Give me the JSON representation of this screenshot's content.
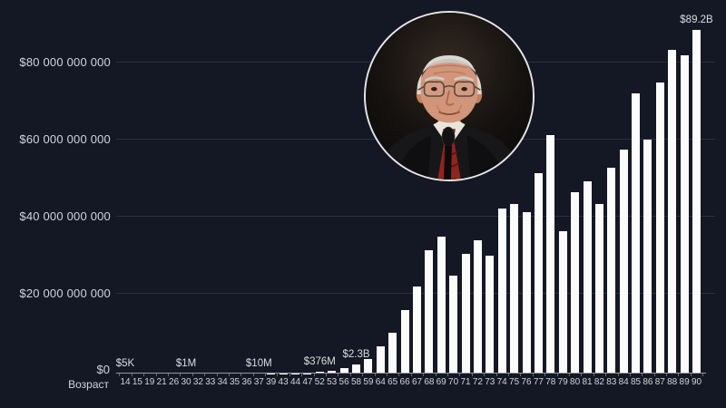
{
  "colors": {
    "background": "#141824",
    "bar": "#fbfbfb",
    "text": "#d1d4dc",
    "gridline": "#3a4150",
    "axis_line": "#9598a1",
    "photo_border": "#e6e6e6",
    "tie_red": "#8f2420"
  },
  "y_axis": {
    "zero_label": "$0",
    "ticks": [
      {
        "label": "$80 000 000 000",
        "value": 80000000000
      },
      {
        "label": "$60 000 000 000",
        "value": 60000000000
      },
      {
        "label": "$40 000 000 000",
        "value": 40000000000
      },
      {
        "label": "$20 000 000 000",
        "value": 20000000000
      }
    ]
  },
  "x_axis": {
    "title": "Возраст"
  },
  "annotations": [
    {
      "age": 14,
      "label": "$5K"
    },
    {
      "age": 30,
      "label": "$1M"
    },
    {
      "age": 37,
      "label": "$10M"
    },
    {
      "age": 52,
      "label": "$376M"
    },
    {
      "age": 58,
      "label": "$2.3B"
    },
    {
      "age": 90,
      "label": "$89.2B"
    }
  ],
  "photo": {
    "subject": "Warren Buffett"
  },
  "chart_data": {
    "type": "bar",
    "title": "",
    "xlabel": "Возраст",
    "ylabel": "",
    "legend": null,
    "grid": true,
    "ylim": [
      0,
      90000000000
    ],
    "y_gridlines": [
      20000000000,
      40000000000,
      60000000000,
      80000000000
    ],
    "categories": [
      14,
      15,
      19,
      21,
      26,
      30,
      32,
      33,
      34,
      35,
      36,
      37,
      39,
      43,
      44,
      47,
      52,
      53,
      56,
      58,
      59,
      64,
      65,
      66,
      67,
      68,
      69,
      70,
      71,
      72,
      73,
      74,
      75,
      76,
      77,
      78,
      79,
      80,
      81,
      82,
      83,
      84,
      85,
      86,
      87,
      88,
      89,
      90
    ],
    "values": [
      5000,
      6000,
      10000,
      20000,
      140000,
      1000000,
      1400000,
      2400000,
      3400000,
      7000000,
      8600000,
      10000000,
      25000000,
      34000000,
      19000000,
      67000000,
      376000000,
      620000000,
      1400000000,
      2300000000,
      3800000000,
      7000000000,
      10500000000,
      16500000000,
      22500000000,
      32000000000,
      35500000000,
      25500000000,
      31000000000,
      34500000000,
      30500000000,
      42900000000,
      44000000000,
      42000000000,
      52000000000,
      62000000000,
      37000000000,
      47000000000,
      50000000000,
      44000000000,
      53500000000,
      58200000000,
      72700000000,
      60800000000,
      75600000000,
      84000000000,
      82500000000,
      89200000000
    ]
  }
}
